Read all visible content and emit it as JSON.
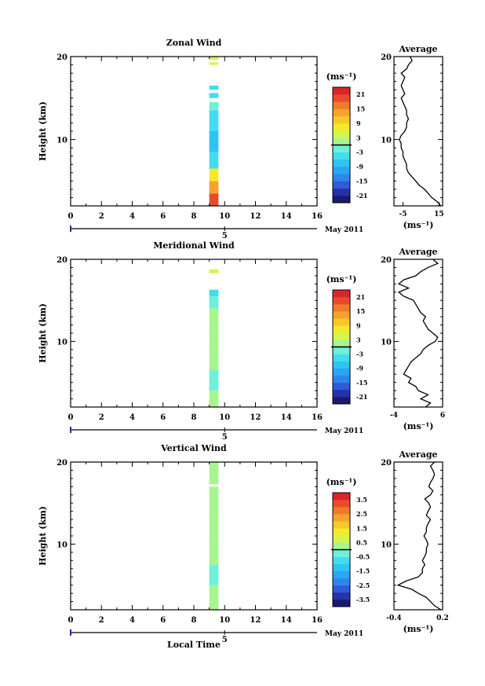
{
  "chart_data": [
    {
      "type": "heatmap",
      "title": "Zonal Wind",
      "ylabel": "Height (km)",
      "xlim": [
        0,
        16
      ],
      "ylim": [
        2,
        20
      ],
      "xticks": [
        "0",
        "2",
        "4",
        "6",
        "8",
        "10",
        "12",
        "14",
        "16"
      ],
      "yticks": [
        "10",
        "20"
      ],
      "date_label": "May 2011",
      "day_label": "5",
      "colorbar": {
        "unit": "(ms⁻¹)",
        "labels": [
          "21",
          "15",
          "9",
          "3",
          "-3",
          "-9",
          "-15",
          "-21"
        ],
        "range": [
          -24,
          24
        ]
      },
      "time_range": [
        9.0,
        9.6
      ],
      "segments": [
        {
          "y0": 2.0,
          "y1": 3.5,
          "value": 19
        },
        {
          "y0": 3.5,
          "y1": 5.0,
          "value": 14
        },
        {
          "y0": 5.0,
          "y1": 6.5,
          "value": 7
        },
        {
          "y0": 6.5,
          "y1": 8.5,
          "value": -4
        },
        {
          "y0": 8.5,
          "y1": 11.0,
          "value": -7
        },
        {
          "y0": 11.0,
          "y1": 13.5,
          "value": -4
        },
        {
          "y0": 13.5,
          "y1": 14.5,
          "value": -2
        },
        {
          "y0": 15.0,
          "y1": 15.6,
          "value": -6
        },
        {
          "y0": 16.0,
          "y1": 16.5,
          "value": -4
        },
        {
          "y0": 19.0,
          "y1": 19.3,
          "value": 3
        },
        {
          "y0": 19.6,
          "y1": 20.0,
          "value": 5
        }
      ],
      "profile": {
        "title": "Average",
        "xlabel": "(ms⁻¹)",
        "xticks": [
          "-5",
          "15"
        ],
        "xlim": [
          -10,
          17
        ],
        "height": [
          2.0,
          2.5,
          3.0,
          3.5,
          4.0,
          4.5,
          5.0,
          5.5,
          6.0,
          6.5,
          7.0,
          7.5,
          8.0,
          8.5,
          9.0,
          9.5,
          10.0,
          10.5,
          11.0,
          11.5,
          12.0,
          12.5,
          13.0,
          13.5,
          14.0,
          14.5,
          15.0,
          15.5,
          16.0,
          16.5,
          17.0,
          17.5,
          18.0,
          18.5,
          19.0,
          19.5,
          20.0
        ],
        "value": [
          16,
          14,
          11,
          9,
          7,
          4,
          2,
          0,
          -2,
          -3,
          -3,
          -4,
          -5,
          -5,
          -6,
          -6,
          -7,
          -6,
          -4,
          -3,
          -3,
          -2,
          -3,
          -3,
          -4,
          -5,
          -6,
          -4,
          -5,
          -6,
          -5,
          -4,
          -6,
          -3,
          -2,
          0,
          -1
        ]
      }
    },
    {
      "type": "heatmap",
      "title": "Meridional Wind",
      "ylabel": "Height (km)",
      "xlim": [
        0,
        16
      ],
      "ylim": [
        2,
        20
      ],
      "xticks": [
        "0",
        "2",
        "4",
        "6",
        "8",
        "10",
        "12",
        "14",
        "16"
      ],
      "yticks": [
        "10",
        "20"
      ],
      "date_label": "May 2011",
      "day_label": "5",
      "colorbar": {
        "unit": "(ms⁻¹)",
        "labels": [
          "21",
          "15",
          "9",
          "3",
          "-3",
          "-9",
          "-15",
          "-21"
        ],
        "range": [
          -24,
          24
        ]
      },
      "time_range": [
        9.0,
        9.6
      ],
      "segments": [
        {
          "y0": 2.0,
          "y1": 4.0,
          "value": 0
        },
        {
          "y0": 4.0,
          "y1": 6.5,
          "value": -1
        },
        {
          "y0": 6.5,
          "y1": 9.0,
          "value": 1
        },
        {
          "y0": 9.0,
          "y1": 11.5,
          "value": 2
        },
        {
          "y0": 11.5,
          "y1": 14.0,
          "value": 0
        },
        {
          "y0": 14.0,
          "y1": 15.5,
          "value": -2
        },
        {
          "y0": 15.5,
          "y1": 16.3,
          "value": -5
        },
        {
          "y0": 18.3,
          "y1": 18.8,
          "value": 3
        }
      ],
      "profile": {
        "title": "Average",
        "xlabel": "(ms⁻¹)",
        "xticks": [
          "-4",
          "6"
        ],
        "xlim": [
          -4,
          6
        ],
        "height": [
          2.0,
          2.5,
          3.0,
          3.5,
          4.0,
          4.5,
          5.0,
          5.5,
          6.0,
          6.5,
          7.0,
          7.5,
          8.0,
          8.5,
          9.0,
          9.5,
          10.0,
          10.5,
          11.0,
          11.5,
          12.0,
          12.5,
          13.0,
          13.5,
          14.0,
          14.5,
          15.0,
          15.5,
          16.0,
          16.5,
          17.0,
          17.5,
          18.0,
          18.5,
          19.0,
          19.5,
          20.0
        ],
        "value": [
          2.5,
          3.5,
          1.5,
          3.0,
          1.0,
          0.5,
          -1.0,
          -0.5,
          -2.0,
          -1.5,
          -1.0,
          -0.5,
          0.5,
          1.5,
          2.0,
          3.0,
          4.5,
          5.0,
          4.0,
          3.0,
          2.5,
          2.0,
          2.5,
          1.5,
          1.0,
          0.5,
          0.0,
          -2.0,
          -3.0,
          -1.0,
          -3.0,
          -2.0,
          0.5,
          1.5,
          3.0,
          5.0,
          4.0
        ]
      }
    },
    {
      "type": "heatmap",
      "title": "Vertical Wind",
      "ylabel": "Height (km)",
      "xlabel": "Local Time",
      "xlim": [
        0,
        16
      ],
      "ylim": [
        2,
        20
      ],
      "xticks": [
        "0",
        "2",
        "4",
        "6",
        "8",
        "10",
        "12",
        "14",
        "16"
      ],
      "yticks": [
        "10",
        "20"
      ],
      "date_label": "May 2011",
      "day_label": "5",
      "colorbar": {
        "unit": "(ms⁻¹)",
        "labels": [
          "3.5",
          "2.5",
          "1.5",
          "0.5",
          "-0.5",
          "-1.5",
          "-2.5",
          "-3.5"
        ],
        "range": [
          -4,
          4
        ]
      },
      "time_range": [
        9.0,
        9.6
      ],
      "segments": [
        {
          "y0": 2.0,
          "y1": 5.0,
          "value": 0.1
        },
        {
          "y0": 5.0,
          "y1": 7.5,
          "value": -0.1
        },
        {
          "y0": 7.5,
          "y1": 10.5,
          "value": 0.1
        },
        {
          "y0": 10.5,
          "y1": 13.5,
          "value": 0.0
        },
        {
          "y0": 13.5,
          "y1": 17.0,
          "value": 0.1
        },
        {
          "y0": 17.3,
          "y1": 20.0,
          "value": 0.0
        }
      ],
      "profile": {
        "title": "Average",
        "xlabel": "(ms⁻¹)",
        "xticks": [
          "-0.4",
          "0.2"
        ],
        "xlim": [
          -0.4,
          0.2
        ],
        "height": [
          2.0,
          2.5,
          3.0,
          3.5,
          4.0,
          4.5,
          5.0,
          5.5,
          6.0,
          6.5,
          7.0,
          7.5,
          8.0,
          8.5,
          9.0,
          9.5,
          10.0,
          10.5,
          11.0,
          11.5,
          12.0,
          12.5,
          13.0,
          13.5,
          14.0,
          14.5,
          15.0,
          15.5,
          16.0,
          16.5,
          17.0,
          17.5,
          18.0,
          18.5,
          19.0,
          19.5,
          20.0
        ],
        "value": [
          0.18,
          0.1,
          0.05,
          0.0,
          -0.1,
          -0.18,
          -0.35,
          -0.25,
          -0.1,
          -0.05,
          -0.05,
          -0.02,
          -0.05,
          -0.02,
          0.0,
          0.0,
          0.02,
          0.0,
          -0.03,
          0.0,
          0.0,
          0.02,
          0.05,
          0.0,
          0.02,
          0.05,
          0.03,
          -0.02,
          0.05,
          0.08,
          0.03,
          0.05,
          0.08,
          0.1,
          0.08,
          0.05,
          0.1
        ]
      }
    }
  ]
}
